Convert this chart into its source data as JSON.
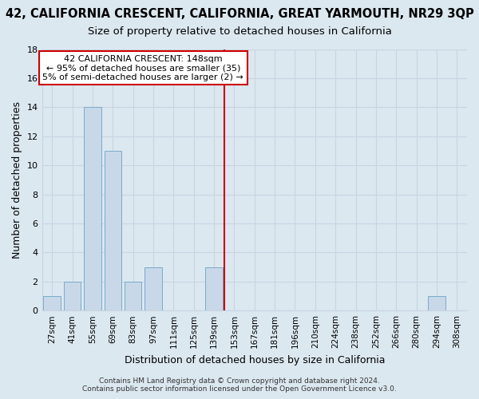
{
  "title": "42, CALIFORNIA CRESCENT, CALIFORNIA, GREAT YARMOUTH, NR29 3QP",
  "subtitle": "Size of property relative to detached houses in California",
  "xlabel": "Distribution of detached houses by size in California",
  "ylabel": "Number of detached properties",
  "categories": [
    "27sqm",
    "41sqm",
    "55sqm",
    "69sqm",
    "83sqm",
    "97sqm",
    "111sqm",
    "125sqm",
    "139sqm",
    "153sqm",
    "167sqm",
    "181sqm",
    "196sqm",
    "210sqm",
    "224sqm",
    "238sqm",
    "252sqm",
    "266sqm",
    "280sqm",
    "294sqm",
    "308sqm"
  ],
  "values": [
    1,
    2,
    14,
    11,
    2,
    3,
    0,
    0,
    3,
    0,
    0,
    0,
    0,
    0,
    0,
    0,
    0,
    0,
    0,
    1,
    0
  ],
  "highlight_index": 9,
  "bar_color": "#c8d8e8",
  "vline_color": "#cc0000",
  "vline_x": 9,
  "ylim": [
    0,
    18
  ],
  "yticks": [
    0,
    2,
    4,
    6,
    8,
    10,
    12,
    14,
    16,
    18
  ],
  "annotation_line1": "42 CALIFORNIA CRESCENT: 148sqm",
  "annotation_line2": "← 95% of detached houses are smaller (35)",
  "annotation_line3": "5% of semi-detached houses are larger (2) →",
  "footer": "Contains HM Land Registry data © Crown copyright and database right 2024.\nContains public sector information licensed under the Open Government Licence v3.0.",
  "background_color": "#dce8f0",
  "grid_color": "#c8d4e0",
  "title_fontsize": 10.5,
  "subtitle_fontsize": 9.5,
  "bar_edgecolor": "#7aaacc"
}
